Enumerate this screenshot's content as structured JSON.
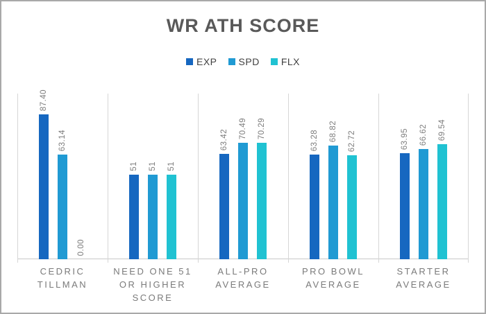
{
  "colors": {
    "border": "#a8a8a8",
    "title_text": "#595959",
    "legend_text": "#404040",
    "data_label": "#7d7d7d",
    "axis_label": "#7a7a7a",
    "gridline": "#d6d6d6",
    "axis_line": "#c8c8c8",
    "background": "#ffffff"
  },
  "chart_data": {
    "type": "bar",
    "title": "WR ATH SCORE",
    "categories": [
      "CEDRIC TILLMAN",
      "NEED ONE 51 OR HIGHER SCORE",
      "ALL-PRO AVERAGE",
      "PRO BOWL AVERAGE",
      "STARTER AVERAGE"
    ],
    "category_lines": [
      [
        "CEDRIC",
        "TILLMAN"
      ],
      [
        "NEED ONE 51",
        "OR HIGHER",
        "SCORE"
      ],
      [
        "ALL-PRO",
        "AVERAGE"
      ],
      [
        "PRO BOWL",
        "AVERAGE"
      ],
      [
        "STARTER",
        "AVERAGE"
      ]
    ],
    "series": [
      {
        "name": "EXP",
        "color": "#1667c0",
        "values": [
          87.4,
          51,
          63.42,
          63.28,
          63.95
        ],
        "labels": [
          "87.40",
          "51",
          "63.42",
          "63.28",
          "63.95"
        ]
      },
      {
        "name": "SPD",
        "color": "#209ad3",
        "values": [
          63.14,
          51,
          70.49,
          68.82,
          66.62
        ],
        "labels": [
          "63.14",
          "51",
          "70.49",
          "68.82",
          "66.62"
        ]
      },
      {
        "name": "FLX",
        "color": "#20c2d2",
        "values": [
          0.0,
          51,
          70.29,
          62.72,
          69.54
        ],
        "labels": [
          "0.00",
          "51",
          "70.29",
          "62.72",
          "69.54"
        ]
      }
    ],
    "ylim": [
      0,
      100
    ],
    "grid": "vertical-category-separators",
    "legend_position": "top",
    "data_label_rotation": "vertical",
    "xlabel": "",
    "ylabel": ""
  }
}
